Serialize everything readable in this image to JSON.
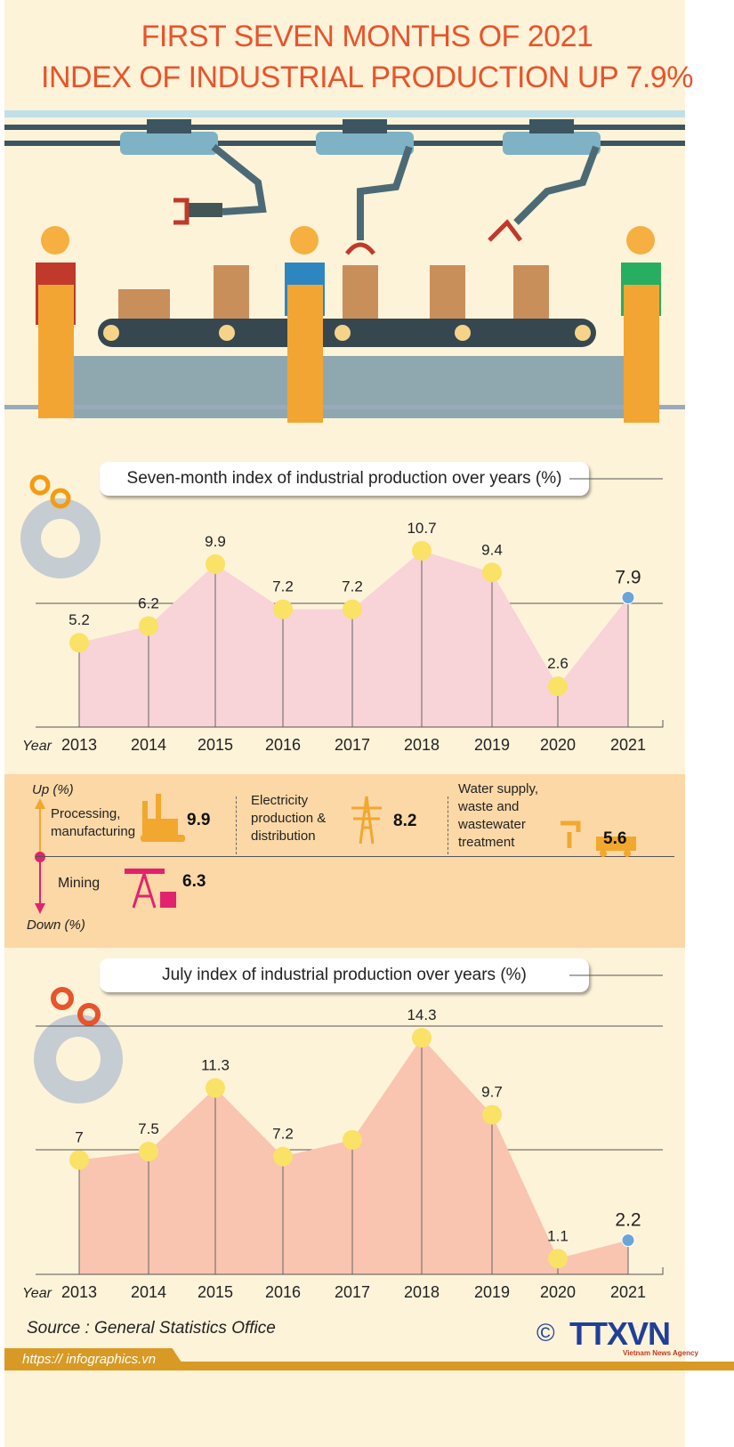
{
  "header": {
    "title_line1": "FIRST SEVEN MONTHS OF 2021",
    "title_line2": "INDEX OF INDUSTRIAL PRODUCTION UP 7.9%"
  },
  "colors": {
    "title": "#e8542b",
    "area1": "#f8d3d8",
    "area2": "#f9c4b0",
    "point": "#f9e266",
    "highlight_point": "#6aa5d8",
    "band": "#fbd8a6",
    "up": "#f2a72f",
    "down": "#e3226f"
  },
  "chart_data": [
    {
      "type": "area",
      "title": "Seven-month index of industrial production over years (%)",
      "xlabel": "Year",
      "categories": [
        "2013",
        "2014",
        "2015",
        "2016",
        "2017",
        "2018",
        "2019",
        "2020",
        "2021"
      ],
      "values": [
        5.2,
        6.2,
        9.9,
        7.2,
        7.2,
        10.7,
        9.4,
        2.6,
        7.9
      ],
      "value_labels": [
        "5.2",
        "6.2",
        "9.9",
        "7.2",
        "7.2",
        "10.7",
        "9.4",
        "2.6",
        "7.9"
      ],
      "highlight": "2021"
    },
    {
      "type": "area",
      "title": "July index of industrial production over years (%)",
      "xlabel": "Year",
      "categories": [
        "2013",
        "2014",
        "2015",
        "2016",
        "2017",
        "2018",
        "2019",
        "2020",
        "2021"
      ],
      "values": [
        7,
        7.5,
        11.3,
        7.2,
        8.2,
        14.3,
        9.7,
        1.1,
        2.2
      ],
      "value_labels": [
        "7",
        "7.5",
        "11.3",
        "7.2",
        "",
        "14.3",
        "9.7",
        "1.1",
        "2.2"
      ],
      "highlight": "2021"
    }
  ],
  "sectors": {
    "up_label": "Up  (%)",
    "down_label": "Down (%)",
    "items": [
      {
        "label": "Processing, manufacturing",
        "value": "9.9",
        "direction": "up",
        "icon": "factory-icon"
      },
      {
        "label": "Electricity production & distribution",
        "value": "8.2",
        "direction": "up",
        "icon": "power-tower-icon"
      },
      {
        "label": "Water supply, waste and wastewater treatment",
        "value": "5.6",
        "direction": "up",
        "icon": "tap-truck-icon"
      },
      {
        "label": "Mining",
        "value": "6.3",
        "direction": "down",
        "icon": "oil-pump-icon"
      }
    ]
  },
  "footer": {
    "source": "Source : General Statistics Office",
    "url": "https:// infographics.vn",
    "copyright": "©",
    "logo": "TTXVN",
    "logo_sub": "Vietnam News Agency"
  }
}
